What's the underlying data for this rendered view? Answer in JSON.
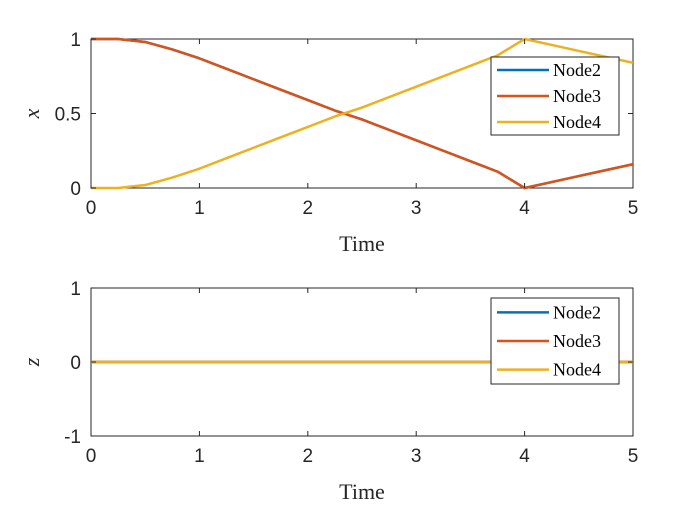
{
  "colors": {
    "series": [
      "#0072BD",
      "#D95319",
      "#EDB120"
    ],
    "axis": "#262626",
    "background": "#FFFFFF"
  },
  "chart_data": [
    {
      "type": "line",
      "title": "",
      "xlabel": "Time",
      "ylabel": "x",
      "xlim": [
        0,
        5
      ],
      "ylim": [
        0,
        1
      ],
      "xticks": [
        "0",
        "1",
        "2",
        "3",
        "4",
        "5"
      ],
      "yticks": [
        "0",
        "0.5",
        "1"
      ],
      "legend_position": "top-right",
      "grid": false,
      "series": [
        {
          "name": "Node2",
          "x": [
            0,
            0.25,
            0.5,
            0.75,
            1,
            1.25,
            1.5,
            1.75,
            2,
            2.25,
            2.5,
            2.75,
            3,
            3.25,
            3.5,
            3.75,
            4,
            4.25,
            4.5,
            4.75,
            5
          ],
          "y": [
            1,
            1,
            0.98,
            0.93,
            0.87,
            0.8,
            0.73,
            0.66,
            0.59,
            0.52,
            0.46,
            0.39,
            0.32,
            0.25,
            0.18,
            0.11,
            0,
            0.04,
            0.08,
            0.12,
            0.16
          ]
        },
        {
          "name": "Node3",
          "x": [
            0,
            0.25,
            0.5,
            0.75,
            1,
            1.25,
            1.5,
            1.75,
            2,
            2.25,
            2.5,
            2.75,
            3,
            3.25,
            3.5,
            3.75,
            4,
            4.25,
            4.5,
            4.75,
            5
          ],
          "y": [
            1,
            1,
            0.98,
            0.93,
            0.87,
            0.8,
            0.73,
            0.66,
            0.59,
            0.52,
            0.46,
            0.39,
            0.32,
            0.25,
            0.18,
            0.11,
            0,
            0.04,
            0.08,
            0.12,
            0.16
          ]
        },
        {
          "name": "Node4",
          "x": [
            0,
            0.25,
            0.5,
            0.75,
            1,
            1.25,
            1.5,
            1.75,
            2,
            2.25,
            2.5,
            2.75,
            3,
            3.25,
            3.5,
            3.75,
            4,
            4.25,
            4.5,
            4.75,
            5
          ],
          "y": [
            0,
            0,
            0.02,
            0.07,
            0.13,
            0.2,
            0.27,
            0.34,
            0.41,
            0.48,
            0.54,
            0.61,
            0.68,
            0.75,
            0.82,
            0.89,
            1,
            0.96,
            0.92,
            0.88,
            0.84
          ]
        }
      ]
    },
    {
      "type": "line",
      "title": "",
      "xlabel": "Time",
      "ylabel": "z",
      "xlim": [
        0,
        5
      ],
      "ylim": [
        -1,
        1
      ],
      "xticks": [
        "0",
        "1",
        "2",
        "3",
        "4",
        "5"
      ],
      "yticks": [
        "-1",
        "0",
        "1"
      ],
      "legend_position": "top-right",
      "grid": false,
      "series": [
        {
          "name": "Node2",
          "x": [
            0,
            5
          ],
          "y": [
            0,
            0
          ]
        },
        {
          "name": "Node3",
          "x": [
            0,
            5
          ],
          "y": [
            0,
            0
          ]
        },
        {
          "name": "Node4",
          "x": [
            0,
            5
          ],
          "y": [
            0,
            0
          ]
        }
      ]
    }
  ]
}
